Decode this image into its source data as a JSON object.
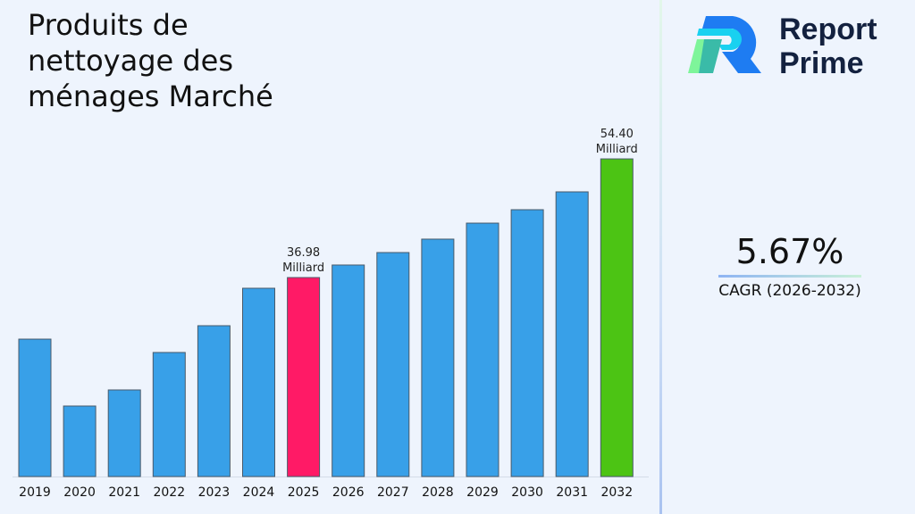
{
  "title": "Produits de nettoyage des ménages Marché",
  "brand": {
    "line1": "Report",
    "line2": "Prime"
  },
  "cagr": {
    "value": "5.67%",
    "label": "CAGR (2026-2032)"
  },
  "colors": {
    "default_bar": "#38a0e8",
    "highlight_2025": "#ff1a66",
    "highlight_2032": "#4cc414",
    "background": "#eef4fd"
  },
  "chart_data": {
    "type": "bar",
    "title": "Produits de nettoyage des ménages Marché",
    "categories": [
      "2019",
      "2020",
      "2021",
      "2022",
      "2023",
      "2024",
      "2025",
      "2026",
      "2027",
      "2028",
      "2029",
      "2030",
      "2031",
      "2032"
    ],
    "values": [
      27.94,
      18.12,
      20.48,
      25.98,
      29.91,
      35.41,
      36.98,
      38.82,
      40.65,
      42.62,
      44.97,
      46.94,
      49.56,
      54.4
    ],
    "unit": "Milliard",
    "data_labels": [
      {
        "category": "2025",
        "text": "36.98",
        "unit": "Milliard"
      },
      {
        "category": "2032",
        "text": "54.40",
        "unit": "Milliard"
      }
    ],
    "xlabel": "",
    "ylabel": "",
    "grid": false,
    "y_axis_visible": false
  }
}
